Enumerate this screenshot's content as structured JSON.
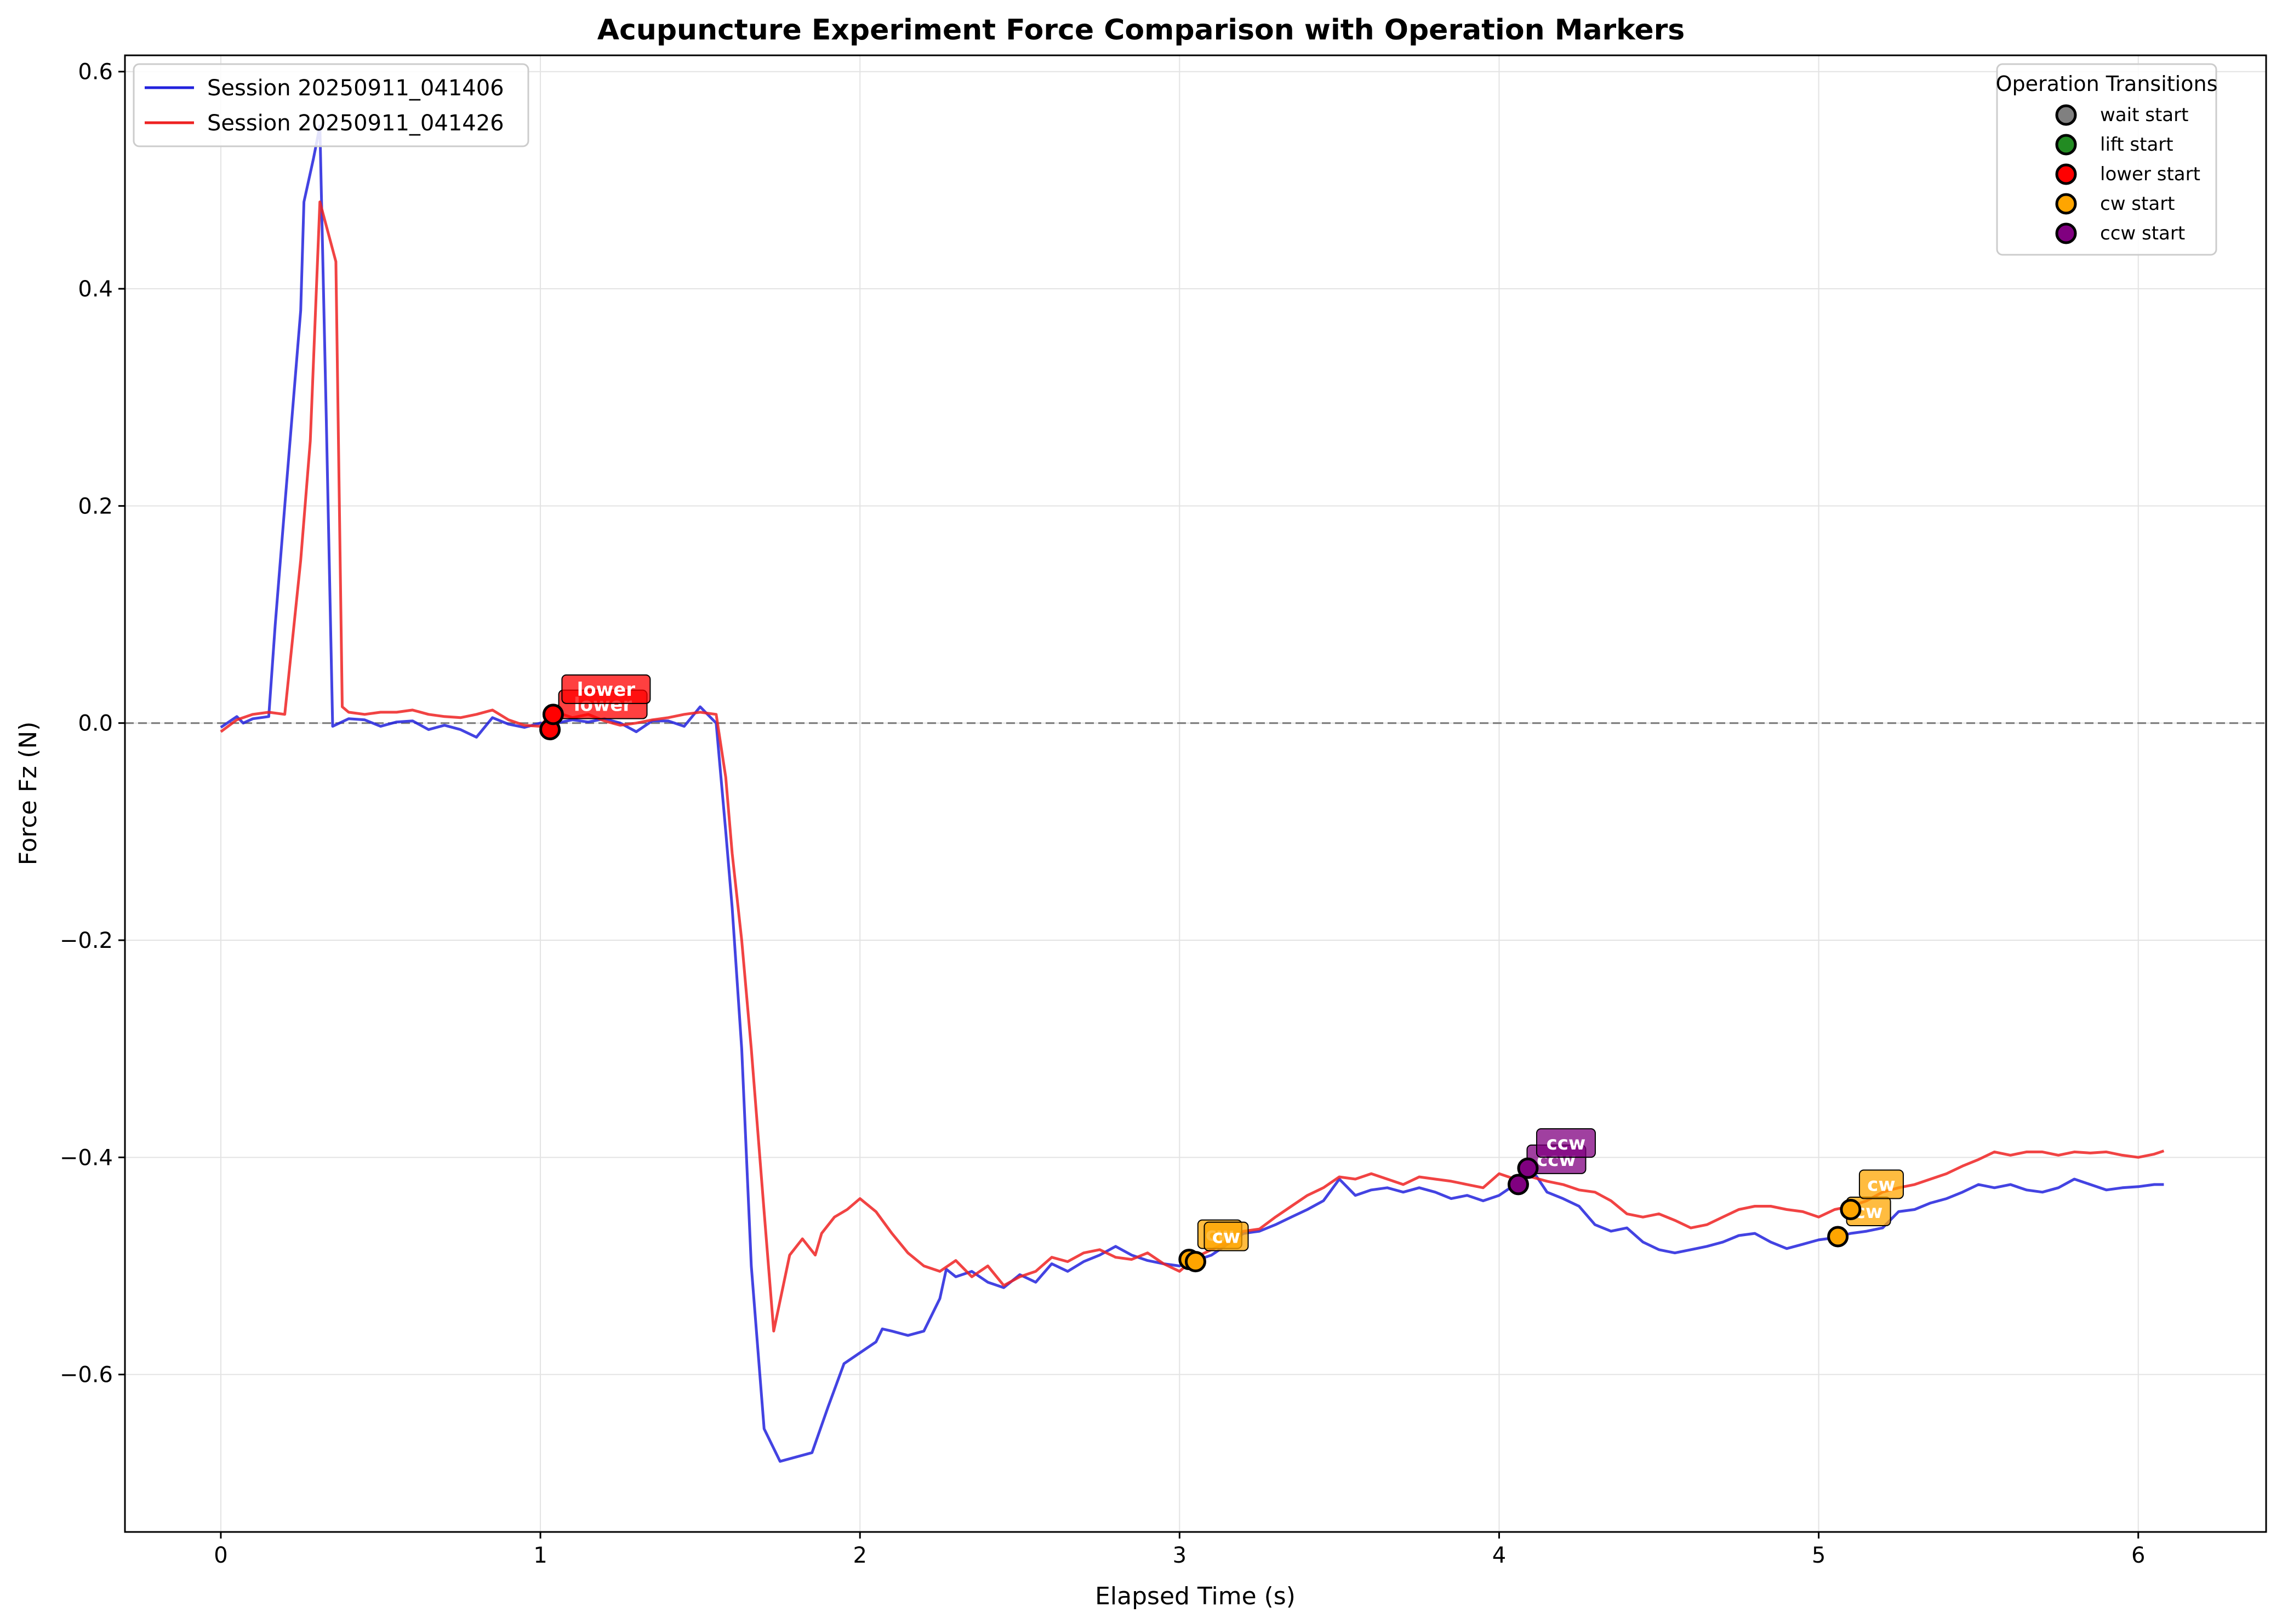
{
  "chart_data": {
    "type": "line",
    "title": "Acupuncture Experiment Force Comparison with Operation Markers",
    "xlabel": "Elapsed Time (s)",
    "ylabel": "Force Fz (N)",
    "xlim": [
      -0.3,
      6.4
    ],
    "ylim": [
      -0.745,
      0.615
    ],
    "xticks": [
      0,
      1,
      2,
      3,
      4,
      5,
      6
    ],
    "xtick_labels": [
      "0",
      "1",
      "2",
      "3",
      "4",
      "5",
      "6"
    ],
    "yticks": [
      -0.6,
      -0.4,
      -0.2,
      0.0,
      0.2,
      0.4,
      0.6
    ],
    "ytick_labels": [
      "−0.6",
      "−0.4",
      "−0.2",
      "0.0",
      "0.2",
      "0.4",
      "0.6"
    ],
    "grid": true,
    "reference_line_y": 0.0,
    "legend_series_position": "top-left",
    "legend_markers_position": "top-right",
    "series": [
      {
        "name": "Session 20250911_041406",
        "color": "#2222dd",
        "points": [
          [
            0.0,
            -0.004
          ],
          [
            0.05,
            0.006
          ],
          [
            0.07,
            0.0
          ],
          [
            0.1,
            0.004
          ],
          [
            0.15,
            0.006
          ],
          [
            0.17,
            0.09
          ],
          [
            0.2,
            0.2
          ],
          [
            0.25,
            0.38
          ],
          [
            0.26,
            0.48
          ],
          [
            0.29,
            0.52
          ],
          [
            0.31,
            0.55
          ],
          [
            0.33,
            0.28
          ],
          [
            0.35,
            -0.003
          ],
          [
            0.4,
            0.004
          ],
          [
            0.45,
            0.003
          ],
          [
            0.5,
            -0.003
          ],
          [
            0.55,
            0.001
          ],
          [
            0.6,
            0.002
          ],
          [
            0.65,
            -0.006
          ],
          [
            0.7,
            -0.002
          ],
          [
            0.75,
            -0.006
          ],
          [
            0.8,
            -0.013
          ],
          [
            0.85,
            0.005
          ],
          [
            0.9,
            -0.001
          ],
          [
            0.95,
            -0.004
          ],
          [
            1.0,
            0.0
          ],
          [
            1.05,
            0.0
          ],
          [
            1.1,
            0.003
          ],
          [
            1.15,
            0.001
          ],
          [
            1.2,
            0.004
          ],
          [
            1.25,
            0.0
          ],
          [
            1.3,
            -0.008
          ],
          [
            1.35,
            0.002
          ],
          [
            1.4,
            0.002
          ],
          [
            1.45,
            -0.003
          ],
          [
            1.5,
            0.015
          ],
          [
            1.55,
            0.0
          ],
          [
            1.58,
            -0.1
          ],
          [
            1.6,
            -0.17
          ],
          [
            1.63,
            -0.3
          ],
          [
            1.66,
            -0.5
          ],
          [
            1.7,
            -0.65
          ],
          [
            1.75,
            -0.68
          ],
          [
            1.85,
            -0.672
          ],
          [
            1.9,
            -0.63
          ],
          [
            1.95,
            -0.59
          ],
          [
            2.0,
            -0.58
          ],
          [
            2.05,
            -0.57
          ],
          [
            2.07,
            -0.558
          ],
          [
            2.1,
            -0.56
          ],
          [
            2.15,
            -0.564
          ],
          [
            2.2,
            -0.56
          ],
          [
            2.25,
            -0.53
          ],
          [
            2.27,
            -0.503
          ],
          [
            2.3,
            -0.51
          ],
          [
            2.35,
            -0.505
          ],
          [
            2.4,
            -0.515
          ],
          [
            2.45,
            -0.52
          ],
          [
            2.5,
            -0.508
          ],
          [
            2.55,
            -0.515
          ],
          [
            2.6,
            -0.498
          ],
          [
            2.65,
            -0.505
          ],
          [
            2.7,
            -0.496
          ],
          [
            2.75,
            -0.49
          ],
          [
            2.8,
            -0.482
          ],
          [
            2.85,
            -0.49
          ],
          [
            2.9,
            -0.495
          ],
          [
            2.95,
            -0.498
          ],
          [
            3.0,
            -0.5
          ],
          [
            3.05,
            -0.495
          ],
          [
            3.1,
            -0.49
          ],
          [
            3.15,
            -0.48
          ],
          [
            3.2,
            -0.47
          ],
          [
            3.25,
            -0.468
          ],
          [
            3.3,
            -0.462
          ],
          [
            3.35,
            -0.455
          ],
          [
            3.4,
            -0.448
          ],
          [
            3.45,
            -0.44
          ],
          [
            3.5,
            -0.42
          ],
          [
            3.55,
            -0.435
          ],
          [
            3.6,
            -0.43
          ],
          [
            3.65,
            -0.428
          ],
          [
            3.7,
            -0.432
          ],
          [
            3.75,
            -0.428
          ],
          [
            3.8,
            -0.432
          ],
          [
            3.85,
            -0.438
          ],
          [
            3.9,
            -0.435
          ],
          [
            3.95,
            -0.44
          ],
          [
            4.0,
            -0.435
          ],
          [
            4.05,
            -0.425
          ],
          [
            4.1,
            -0.41
          ],
          [
            4.15,
            -0.432
          ],
          [
            4.2,
            -0.438
          ],
          [
            4.25,
            -0.445
          ],
          [
            4.3,
            -0.462
          ],
          [
            4.35,
            -0.468
          ],
          [
            4.4,
            -0.465
          ],
          [
            4.45,
            -0.478
          ],
          [
            4.5,
            -0.485
          ],
          [
            4.55,
            -0.488
          ],
          [
            4.6,
            -0.485
          ],
          [
            4.65,
            -0.482
          ],
          [
            4.7,
            -0.478
          ],
          [
            4.75,
            -0.472
          ],
          [
            4.8,
            -0.47
          ],
          [
            4.85,
            -0.478
          ],
          [
            4.9,
            -0.484
          ],
          [
            4.95,
            -0.48
          ],
          [
            5.0,
            -0.476
          ],
          [
            5.05,
            -0.474
          ],
          [
            5.1,
            -0.47
          ],
          [
            5.15,
            -0.468
          ],
          [
            5.2,
            -0.465
          ],
          [
            5.25,
            -0.45
          ],
          [
            5.3,
            -0.448
          ],
          [
            5.35,
            -0.442
          ],
          [
            5.4,
            -0.438
          ],
          [
            5.45,
            -0.432
          ],
          [
            5.5,
            -0.425
          ],
          [
            5.55,
            -0.428
          ],
          [
            5.6,
            -0.425
          ],
          [
            5.65,
            -0.43
          ],
          [
            5.7,
            -0.432
          ],
          [
            5.75,
            -0.428
          ],
          [
            5.8,
            -0.42
          ],
          [
            5.85,
            -0.425
          ],
          [
            5.9,
            -0.43
          ],
          [
            5.95,
            -0.428
          ],
          [
            6.0,
            -0.427
          ],
          [
            6.05,
            -0.425
          ],
          [
            6.08,
            -0.425
          ]
        ]
      },
      {
        "name": "Session 20250911_041426",
        "color": "#ee2222",
        "points": [
          [
            0.0,
            -0.008
          ],
          [
            0.05,
            0.003
          ],
          [
            0.1,
            0.008
          ],
          [
            0.15,
            0.01
          ],
          [
            0.2,
            0.008
          ],
          [
            0.25,
            0.15
          ],
          [
            0.28,
            0.26
          ],
          [
            0.31,
            0.48
          ],
          [
            0.36,
            0.425
          ],
          [
            0.38,
            0.015
          ],
          [
            0.4,
            0.01
          ],
          [
            0.45,
            0.008
          ],
          [
            0.5,
            0.01
          ],
          [
            0.55,
            0.01
          ],
          [
            0.6,
            0.012
          ],
          [
            0.65,
            0.008
          ],
          [
            0.7,
            0.006
          ],
          [
            0.75,
            0.005
          ],
          [
            0.8,
            0.008
          ],
          [
            0.85,
            0.012
          ],
          [
            0.9,
            0.003
          ],
          [
            0.95,
            -0.002
          ],
          [
            1.0,
            -0.003
          ],
          [
            1.03,
            0.008
          ],
          [
            1.05,
            0.01
          ],
          [
            1.1,
            0.005
          ],
          [
            1.15,
            0.008
          ],
          [
            1.2,
            0.002
          ],
          [
            1.25,
            -0.002
          ],
          [
            1.3,
            0.0
          ],
          [
            1.35,
            0.003
          ],
          [
            1.4,
            0.005
          ],
          [
            1.45,
            0.008
          ],
          [
            1.5,
            0.01
          ],
          [
            1.55,
            0.008
          ],
          [
            1.58,
            -0.05
          ],
          [
            1.6,
            -0.12
          ],
          [
            1.63,
            -0.2
          ],
          [
            1.66,
            -0.3
          ],
          [
            1.7,
            -0.45
          ],
          [
            1.73,
            -0.56
          ],
          [
            1.78,
            -0.49
          ],
          [
            1.82,
            -0.475
          ],
          [
            1.86,
            -0.49
          ],
          [
            1.88,
            -0.47
          ],
          [
            1.92,
            -0.455
          ],
          [
            1.96,
            -0.448
          ],
          [
            2.0,
            -0.438
          ],
          [
            2.05,
            -0.45
          ],
          [
            2.1,
            -0.47
          ],
          [
            2.15,
            -0.488
          ],
          [
            2.2,
            -0.5
          ],
          [
            2.25,
            -0.505
          ],
          [
            2.3,
            -0.495
          ],
          [
            2.35,
            -0.51
          ],
          [
            2.4,
            -0.5
          ],
          [
            2.45,
            -0.518
          ],
          [
            2.5,
            -0.51
          ],
          [
            2.55,
            -0.505
          ],
          [
            2.6,
            -0.492
          ],
          [
            2.65,
            -0.496
          ],
          [
            2.7,
            -0.488
          ],
          [
            2.75,
            -0.485
          ],
          [
            2.8,
            -0.492
          ],
          [
            2.85,
            -0.494
          ],
          [
            2.9,
            -0.488
          ],
          [
            2.95,
            -0.498
          ],
          [
            3.0,
            -0.505
          ],
          [
            3.05,
            -0.492
          ],
          [
            3.1,
            -0.485
          ],
          [
            3.15,
            -0.478
          ],
          [
            3.2,
            -0.468
          ],
          [
            3.25,
            -0.466
          ],
          [
            3.3,
            -0.455
          ],
          [
            3.35,
            -0.445
          ],
          [
            3.4,
            -0.435
          ],
          [
            3.45,
            -0.428
          ],
          [
            3.5,
            -0.418
          ],
          [
            3.55,
            -0.42
          ],
          [
            3.6,
            -0.415
          ],
          [
            3.65,
            -0.42
          ],
          [
            3.7,
            -0.425
          ],
          [
            3.75,
            -0.418
          ],
          [
            3.8,
            -0.42
          ],
          [
            3.85,
            -0.422
          ],
          [
            3.9,
            -0.425
          ],
          [
            3.95,
            -0.428
          ],
          [
            4.0,
            -0.415
          ],
          [
            4.05,
            -0.42
          ],
          [
            4.1,
            -0.418
          ],
          [
            4.15,
            -0.422
          ],
          [
            4.2,
            -0.425
          ],
          [
            4.25,
            -0.43
          ],
          [
            4.3,
            -0.432
          ],
          [
            4.35,
            -0.44
          ],
          [
            4.4,
            -0.452
          ],
          [
            4.45,
            -0.455
          ],
          [
            4.5,
            -0.452
          ],
          [
            4.55,
            -0.458
          ],
          [
            4.6,
            -0.465
          ],
          [
            4.65,
            -0.462
          ],
          [
            4.7,
            -0.455
          ],
          [
            4.75,
            -0.448
          ],
          [
            4.8,
            -0.445
          ],
          [
            4.85,
            -0.445
          ],
          [
            4.9,
            -0.448
          ],
          [
            4.95,
            -0.45
          ],
          [
            5.0,
            -0.455
          ],
          [
            5.05,
            -0.448
          ],
          [
            5.1,
            -0.445
          ],
          [
            5.15,
            -0.44
          ],
          [
            5.2,
            -0.432
          ],
          [
            5.25,
            -0.428
          ],
          [
            5.3,
            -0.425
          ],
          [
            5.35,
            -0.42
          ],
          [
            5.4,
            -0.415
          ],
          [
            5.45,
            -0.408
          ],
          [
            5.5,
            -0.402
          ],
          [
            5.55,
            -0.395
          ],
          [
            5.6,
            -0.398
          ],
          [
            5.65,
            -0.395
          ],
          [
            5.7,
            -0.395
          ],
          [
            5.75,
            -0.398
          ],
          [
            5.8,
            -0.395
          ],
          [
            5.85,
            -0.396
          ],
          [
            5.9,
            -0.395
          ],
          [
            5.95,
            -0.398
          ],
          [
            6.0,
            -0.4
          ],
          [
            6.05,
            -0.397
          ],
          [
            6.08,
            -0.394
          ]
        ]
      }
    ],
    "marker_legend": {
      "title": "Operation Transitions",
      "items": [
        {
          "label": "wait start",
          "color": "#808080"
        },
        {
          "label": "lift start",
          "color": "#228b22"
        },
        {
          "label": "lower start",
          "color": "#ff0000"
        },
        {
          "label": "cw start",
          "color": "#ffa500"
        },
        {
          "label": "ccw start",
          "color": "#800080"
        }
      ]
    },
    "operation_markers": [
      {
        "x": 1.03,
        "y": -0.006,
        "color": "#ff0000",
        "label": "lower"
      },
      {
        "x": 1.04,
        "y": 0.008,
        "color": "#ff0000",
        "label": "lower"
      },
      {
        "x": 3.03,
        "y": -0.494,
        "color": "#ffa500",
        "label": "cw"
      },
      {
        "x": 3.05,
        "y": -0.496,
        "color": "#ffa500",
        "label": "cw"
      },
      {
        "x": 4.06,
        "y": -0.425,
        "color": "#800080",
        "label": "ccw"
      },
      {
        "x": 4.09,
        "y": -0.41,
        "color": "#800080",
        "label": "ccw"
      },
      {
        "x": 5.06,
        "y": -0.473,
        "color": "#ffa500",
        "label": "cw"
      },
      {
        "x": 5.1,
        "y": -0.448,
        "color": "#ffa500",
        "label": "cw"
      }
    ]
  }
}
